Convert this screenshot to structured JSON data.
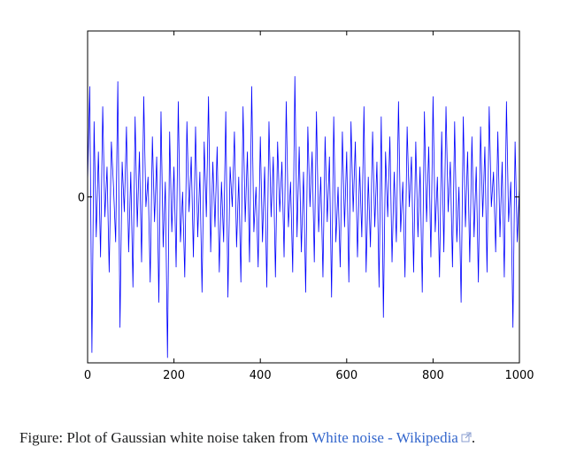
{
  "chart_data": {
    "type": "line",
    "x": [
      0,
      5,
      10,
      15,
      20,
      25,
      30,
      35,
      40,
      45,
      50,
      55,
      60,
      65,
      70,
      75,
      80,
      85,
      90,
      95,
      100,
      105,
      110,
      115,
      120,
      125,
      130,
      135,
      140,
      145,
      150,
      155,
      160,
      165,
      170,
      175,
      180,
      185,
      190,
      195,
      200,
      205,
      210,
      215,
      220,
      225,
      230,
      235,
      240,
      245,
      250,
      255,
      260,
      265,
      270,
      275,
      280,
      285,
      290,
      295,
      300,
      305,
      310,
      315,
      320,
      325,
      330,
      335,
      340,
      345,
      350,
      355,
      360,
      365,
      370,
      375,
      380,
      385,
      390,
      395,
      400,
      405,
      410,
      415,
      420,
      425,
      430,
      435,
      440,
      445,
      450,
      455,
      460,
      465,
      470,
      475,
      480,
      485,
      490,
      495,
      500,
      505,
      510,
      515,
      520,
      525,
      530,
      535,
      540,
      545,
      550,
      555,
      560,
      565,
      570,
      575,
      580,
      585,
      590,
      595,
      600,
      605,
      610,
      615,
      620,
      625,
      630,
      635,
      640,
      645,
      650,
      655,
      660,
      665,
      670,
      675,
      680,
      685,
      690,
      695,
      700,
      705,
      710,
      715,
      720,
      725,
      730,
      735,
      740,
      745,
      750,
      755,
      760,
      765,
      770,
      775,
      780,
      785,
      790,
      795,
      800,
      805,
      810,
      815,
      820,
      825,
      830,
      835,
      840,
      845,
      850,
      855,
      860,
      865,
      870,
      875,
      880,
      885,
      890,
      895,
      900,
      905,
      910,
      915,
      920,
      925,
      930,
      935,
      940,
      945,
      950,
      955,
      960,
      965,
      970,
      975,
      980,
      985,
      990,
      995,
      1000
    ],
    "series": [
      {
        "color": "#0000ff",
        "values": [
          0.3,
          2.2,
          -3.1,
          1.5,
          -0.8,
          0.9,
          -1.2,
          1.8,
          -0.4,
          0.6,
          -1.5,
          1.1,
          0.2,
          -0.9,
          2.3,
          -2.6,
          0.7,
          -0.3,
          1.4,
          -1.1,
          0.5,
          -1.8,
          1.6,
          -0.6,
          0.9,
          -1.3,
          2.0,
          -0.2,
          0.4,
          -1.7,
          1.2,
          -0.5,
          0.8,
          -2.1,
          1.7,
          -1.0,
          0.3,
          -3.2,
          1.3,
          -0.7,
          0.6,
          -1.4,
          1.9,
          -0.9,
          0.1,
          -1.6,
          1.5,
          -0.3,
          0.8,
          -1.2,
          1.4,
          -0.8,
          0.5,
          -1.9,
          1.1,
          -0.4,
          2.0,
          -1.1,
          0.7,
          -0.6,
          1.0,
          -1.5,
          0.3,
          -0.9,
          1.7,
          -2.0,
          0.6,
          -0.2,
          1.3,
          -1.0,
          0.4,
          -1.7,
          1.8,
          -0.5,
          0.9,
          -1.3,
          2.2,
          -0.7,
          0.2,
          -1.4,
          1.2,
          -0.9,
          0.6,
          -1.8,
          1.5,
          -0.4,
          0.8,
          -1.6,
          1.1,
          -0.3,
          0.7,
          -1.2,
          1.9,
          -0.6,
          0.3,
          -1.5,
          2.4,
          -0.8,
          1.0,
          -1.1,
          0.5,
          -1.9,
          1.4,
          -0.2,
          0.9,
          -1.3,
          1.7,
          -0.7,
          0.4,
          -1.6,
          1.2,
          -0.5,
          0.8,
          -2.0,
          1.6,
          -0.9,
          0.2,
          -1.4,
          1.3,
          -0.6,
          0.9,
          -1.7,
          1.5,
          -0.3,
          1.1,
          -1.2,
          0.6,
          -0.8,
          1.8,
          -1.5,
          0.4,
          -1.0,
          1.3,
          -0.6,
          0.7,
          -1.8,
          1.6,
          -2.4,
          0.9,
          -0.4,
          1.2,
          -1.3,
          0.5,
          -0.9,
          1.9,
          -0.7,
          0.3,
          -1.6,
          1.4,
          -0.2,
          0.8,
          -1.5,
          1.1,
          -0.8,
          0.6,
          -1.9,
          1.7,
          -0.5,
          1.0,
          -1.2,
          2.0,
          -0.7,
          0.4,
          -1.6,
          1.3,
          -1.1,
          1.8,
          -0.3,
          0.7,
          -1.4,
          1.5,
          -0.9,
          0.2,
          -2.1,
          1.6,
          -0.6,
          0.9,
          -1.3,
          1.2,
          -0.8,
          0.6,
          -1.7,
          1.4,
          -0.4,
          1.0,
          -1.5,
          1.8,
          -0.2,
          0.5,
          -1.1,
          1.3,
          -0.8,
          0.7,
          -1.6,
          1.9,
          -0.5,
          0.3,
          -2.6,
          1.1,
          -0.9,
          0.2
        ]
      }
    ],
    "xlim": [
      0,
      1000
    ],
    "xticks": [
      0,
      200,
      400,
      600,
      800,
      1000
    ],
    "ylim": [
      -3.3,
      3.3
    ],
    "yticks": [
      0
    ]
  },
  "caption": {
    "text": "Figure: Plot of Gaussian white noise taken from ",
    "link": "White noise - Wikipedia",
    "end": "."
  }
}
